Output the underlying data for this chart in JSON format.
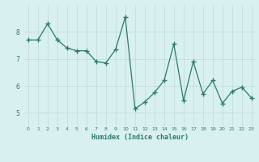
{
  "x": [
    0,
    1,
    2,
    3,
    4,
    5,
    6,
    7,
    8,
    9,
    10,
    11,
    12,
    13,
    14,
    15,
    16,
    17,
    18,
    19,
    20,
    21,
    22,
    23
  ],
  "y": [
    7.7,
    7.7,
    8.3,
    7.7,
    7.4,
    7.3,
    7.3,
    6.9,
    6.85,
    7.35,
    8.55,
    5.15,
    5.4,
    5.75,
    6.2,
    7.55,
    5.45,
    6.9,
    5.7,
    6.2,
    5.35,
    5.8,
    5.95,
    5.55
  ],
  "xlabel": "Humidex (Indice chaleur)",
  "line_color": "#2d7a6e",
  "marker": "+",
  "marker_size": 4,
  "linewidth": 0.9,
  "bg_color": "#d8f0ef",
  "grid_color": "#c0dbd8",
  "tick_label_color": "#2d7a6e",
  "xlabel_color": "#2d7a6e",
  "ylim": [
    4.5,
    9.0
  ],
  "xlim": [
    -0.5,
    23.5
  ],
  "yticks": [
    5,
    6,
    7,
    8
  ],
  "xticks": [
    0,
    1,
    2,
    3,
    4,
    5,
    6,
    7,
    8,
    9,
    10,
    11,
    12,
    13,
    14,
    15,
    16,
    17,
    18,
    19,
    20,
    21,
    22,
    23
  ]
}
